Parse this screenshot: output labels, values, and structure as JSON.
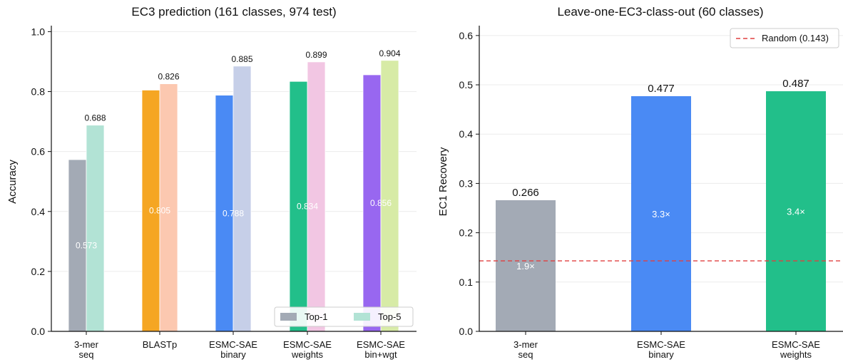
{
  "chart_data": [
    {
      "type": "bar",
      "title": "EC3 prediction (161 classes, 974 test)",
      "xlabel": "",
      "ylabel": "Accuracy",
      "ylim": [
        0,
        1.02
      ],
      "yticks": [
        "0.0",
        "0.2",
        "0.4",
        "0.6",
        "0.8",
        "1.0"
      ],
      "categories": [
        [
          "3-mer",
          "seq"
        ],
        [
          "BLASTp"
        ],
        [
          "ESMC-SAE",
          "binary"
        ],
        [
          "ESMC-SAE",
          "weights"
        ],
        [
          "ESMC-SAE",
          "bin+wgt"
        ]
      ],
      "series": [
        {
          "name": "Top-1",
          "values": [
            0.573,
            0.805,
            0.788,
            0.834,
            0.856
          ],
          "labels": [
            "0.573",
            "0.805",
            "0.788",
            "0.834",
            "0.856"
          ],
          "colors": [
            "#a3aab5",
            "#f5a623",
            "#4a8af4",
            "#22bf8a",
            "#9867f0"
          ]
        },
        {
          "name": "Top-5",
          "values": [
            0.688,
            0.826,
            0.885,
            0.899,
            0.904
          ],
          "labels": [
            "0.688",
            "0.826",
            "0.885",
            "0.899",
            "0.904"
          ],
          "colors": [
            "#b2e3d5",
            "#fcc8b0",
            "#c6cfe8",
            "#f2c6e3",
            "#d7eba6"
          ]
        }
      ],
      "legend": {
        "position": "lower-right",
        "entries": [
          {
            "name": "Top-1",
            "color": "#a3aab5"
          },
          {
            "name": "Top-5",
            "color": "#b2e3d5"
          }
        ]
      },
      "grid": "horizontal"
    },
    {
      "type": "bar",
      "title": "Leave-one-EC3-class-out (60 classes)",
      "xlabel": "",
      "ylabel": "EC1 Recovery",
      "ylim": [
        0,
        0.62
      ],
      "yticks": [
        "0.0",
        "0.1",
        "0.2",
        "0.3",
        "0.4",
        "0.5",
        "0.6"
      ],
      "categories": [
        [
          "3-mer",
          "seq"
        ],
        [
          "ESMC-SAE",
          "binary"
        ],
        [
          "ESMC-SAE",
          "weights"
        ]
      ],
      "values": [
        0.266,
        0.477,
        0.487
      ],
      "labels": [
        "0.266",
        "0.477",
        "0.487"
      ],
      "ratios": [
        "1.9×",
        "3.3×",
        "3.4×"
      ],
      "colors": [
        "#a3aab5",
        "#4a8af4",
        "#22bf8a"
      ],
      "reference_line": {
        "value": 0.143,
        "name": "Random (0.143)",
        "color": "#e04040",
        "style": "dashed"
      },
      "legend": {
        "position": "top-right"
      },
      "grid": "horizontal"
    }
  ]
}
